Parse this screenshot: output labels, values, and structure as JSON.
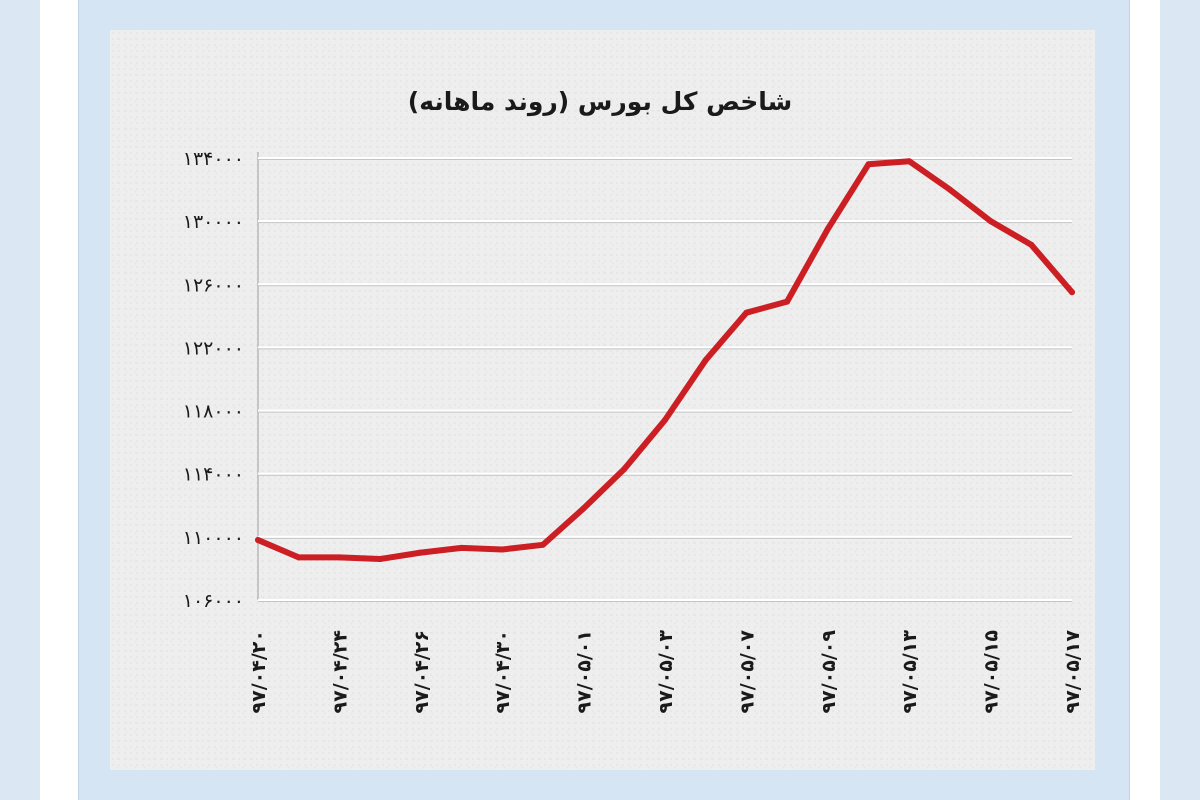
{
  "chart_data": {
    "type": "line",
    "title": "شاخص کل بورس (روند ماهانه)",
    "xlabel": "",
    "ylabel": "",
    "categories": [
      "۹۷/۰۴/۲۰",
      "۹۷/۰۴/۲۴",
      "۹۷/۰۴/۲۶",
      "۹۷/۰۴/۳۰",
      "۹۷/۰۵/۰۱",
      "۹۷/۰۵/۰۳",
      "۹۷/۰۵/۰۷",
      "۹۷/۰۵/۰۹",
      "۹۷/۰۵/۱۳",
      "۹۷/۰۵/۱۵",
      "۹۷/۰۵/۱۷"
    ],
    "y_tick_labels": [
      "۱۰۶۰۰۰",
      "۱۱۰۰۰۰",
      "۱۱۴۰۰۰",
      "۱۱۸۰۰۰",
      "۱۲۲۰۰۰",
      "۱۲۶۰۰۰",
      "۱۳۰۰۰۰",
      "۱۳۴۰۰۰"
    ],
    "y_ticks": [
      106000,
      110000,
      114000,
      118000,
      122000,
      126000,
      130000,
      134000
    ],
    "ylim": [
      106000,
      134000
    ],
    "grid": true,
    "series": [
      {
        "name": "",
        "color": "#cc1f24",
        "x": [
          0,
          0.5,
          1,
          1.5,
          2,
          2.5,
          3,
          3.5,
          4,
          4.5,
          5,
          5.5,
          6,
          6.5,
          7,
          7.5,
          8,
          8.5,
          9,
          9.5,
          10
        ],
        "values": [
          109800,
          108700,
          108700,
          108600,
          109000,
          109300,
          109200,
          109500,
          111800,
          114300,
          117400,
          121200,
          124200,
          124900,
          129500,
          133600,
          133800,
          132000,
          130000,
          128500,
          125500
        ]
      }
    ]
  }
}
